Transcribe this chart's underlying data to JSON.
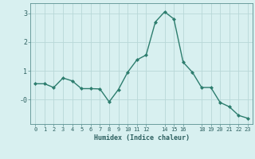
{
  "x": [
    0,
    1,
    2,
    3,
    4,
    5,
    6,
    7,
    8,
    9,
    10,
    11,
    12,
    13,
    14,
    15,
    16,
    17,
    18,
    19,
    20,
    21,
    22,
    23
  ],
  "y": [
    0.55,
    0.55,
    0.42,
    0.75,
    0.65,
    0.38,
    0.38,
    0.37,
    -0.08,
    0.35,
    0.95,
    1.38,
    1.55,
    2.7,
    3.05,
    2.8,
    1.3,
    0.95,
    0.42,
    0.42,
    -0.1,
    -0.25,
    -0.55,
    -0.65
  ],
  "line_color": "#2d7d6e",
  "marker": "D",
  "marker_size": 2.0,
  "bg_color": "#d8f0f0",
  "grid_color": "#b8d8d8",
  "xlabel": "Humidex (Indice chaleur)",
  "xlim": [
    -0.5,
    23.5
  ],
  "ylim": [
    -0.85,
    3.35
  ],
  "yticks": [
    0,
    1,
    2,
    3
  ],
  "ytick_labels": [
    "-0",
    "1",
    "2",
    "3"
  ],
  "xticks": [
    0,
    1,
    2,
    3,
    4,
    5,
    6,
    7,
    8,
    9,
    10,
    11,
    12,
    14,
    15,
    16,
    18,
    19,
    20,
    21,
    22,
    23
  ],
  "xtick_labels": [
    "0",
    "1",
    "2",
    "3",
    "4",
    "5",
    "6",
    "7",
    "8",
    "9",
    "10",
    "11",
    "12",
    "14",
    "15",
    "16",
    "18",
    "19",
    "20",
    "21",
    "22",
    "23"
  ],
  "text_color": "#2d6060",
  "spine_color": "#5a9090"
}
